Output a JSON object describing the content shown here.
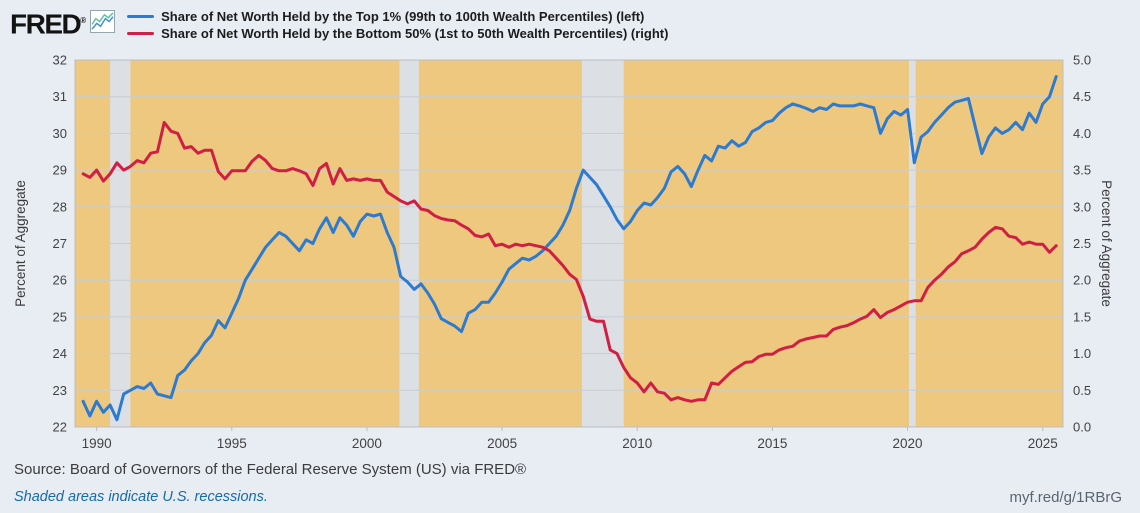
{
  "header": {
    "logo": "FRED",
    "registered": "®"
  },
  "footer": {
    "source": "Source: Board of Governors of the Federal Reserve System (US) via FRED®",
    "note": "Shaded areas indicate U.S. recessions.",
    "shortlink": "myf.red/g/1RBrG"
  },
  "chart_data": {
    "type": "line",
    "left_axis": {
      "label": "Percent of Aggregate",
      "min": 22,
      "max": 32,
      "ticks": [
        22,
        23,
        24,
        25,
        26,
        27,
        28,
        29,
        30,
        31,
        32
      ]
    },
    "right_axis": {
      "label": "Percent of Aggregate",
      "min": 0,
      "max": 5,
      "ticks": [
        0,
        0.5,
        1,
        1.5,
        2,
        2.5,
        3,
        3.5,
        4,
        4.5,
        5
      ]
    },
    "x_axis": {
      "min": 1989.2,
      "max": 2025.75,
      "ticks": [
        1990,
        1995,
        2000,
        2005,
        2010,
        2015,
        2020,
        2025
      ]
    },
    "recessions": [
      [
        1990.5,
        1991.25
      ],
      [
        2001.2,
        2001.92
      ],
      [
        2007.95,
        2009.5
      ],
      [
        2020.05,
        2020.3
      ]
    ],
    "colors": {
      "plot_bg": "#edc87e",
      "recession": "#dcdfe4",
      "grid": "#c8cdd3",
      "frame": "#b9bec5",
      "tick_text": "#424242"
    },
    "series": [
      {
        "name": "Share of Net Worth Held by the Top 1% (99th to 100th Wealth Percentiles) (left)",
        "axis": "left",
        "color": "#2c7bd1",
        "start": 1989.5,
        "step": 0.25,
        "values": [
          22.7,
          22.3,
          22.7,
          22.4,
          22.6,
          22.2,
          22.9,
          23.0,
          23.1,
          23.05,
          23.2,
          22.9,
          22.85,
          22.8,
          23.4,
          23.55,
          23.8,
          24.0,
          24.3,
          24.5,
          24.9,
          24.7,
          25.1,
          25.5,
          26.0,
          26.3,
          26.6,
          26.9,
          27.1,
          27.3,
          27.2,
          27.0,
          26.8,
          27.1,
          27.0,
          27.4,
          27.7,
          27.3,
          27.7,
          27.5,
          27.2,
          27.6,
          27.8,
          27.75,
          27.8,
          27.3,
          26.9,
          26.1,
          25.95,
          25.75,
          25.9,
          25.65,
          25.35,
          24.95,
          24.85,
          24.75,
          24.6,
          25.1,
          25.2,
          25.4,
          25.4,
          25.65,
          25.95,
          26.3,
          26.45,
          26.6,
          26.55,
          26.65,
          26.8,
          27.0,
          27.2,
          27.5,
          27.9,
          28.5,
          29.0,
          28.8,
          28.6,
          28.3,
          28.0,
          27.65,
          27.4,
          27.6,
          27.9,
          28.1,
          28.05,
          28.25,
          28.5,
          28.95,
          29.1,
          28.9,
          28.55,
          29.0,
          29.4,
          29.25,
          29.65,
          29.6,
          29.8,
          29.65,
          29.75,
          30.05,
          30.15,
          30.3,
          30.35,
          30.55,
          30.7,
          30.8,
          30.75,
          30.68,
          30.6,
          30.7,
          30.65,
          30.8,
          30.75,
          30.75,
          30.75,
          30.8,
          30.75,
          30.7,
          30.0,
          30.4,
          30.6,
          30.5,
          30.65,
          29.2,
          29.9,
          30.05,
          30.3,
          30.5,
          30.7,
          30.85,
          30.9,
          30.95,
          30.2,
          29.45,
          29.9,
          30.15,
          30.0,
          30.1,
          30.3,
          30.1,
          30.55,
          30.3,
          30.8,
          31.0,
          31.55
        ]
      },
      {
        "name": "Share of Net Worth Held by the Bottom 50% (1st to 50th Wealth Percentiles) (right)",
        "axis": "right",
        "color": "#d01f44",
        "start": 1989.5,
        "step": 0.25,
        "values": [
          3.45,
          3.4,
          3.5,
          3.35,
          3.45,
          3.6,
          3.5,
          3.55,
          3.63,
          3.6,
          3.73,
          3.75,
          4.15,
          4.03,
          4.0,
          3.8,
          3.82,
          3.73,
          3.77,
          3.77,
          3.48,
          3.38,
          3.49,
          3.49,
          3.49,
          3.62,
          3.7,
          3.63,
          3.52,
          3.49,
          3.49,
          3.52,
          3.49,
          3.45,
          3.29,
          3.52,
          3.59,
          3.31,
          3.52,
          3.36,
          3.38,
          3.36,
          3.38,
          3.36,
          3.36,
          3.2,
          3.14,
          3.08,
          3.04,
          3.08,
          2.97,
          2.95,
          2.88,
          2.84,
          2.82,
          2.81,
          2.75,
          2.7,
          2.61,
          2.59,
          2.63,
          2.47,
          2.49,
          2.45,
          2.49,
          2.47,
          2.49,
          2.47,
          2.45,
          2.4,
          2.3,
          2.2,
          2.08,
          2.01,
          1.78,
          1.47,
          1.44,
          1.44,
          1.05,
          1.0,
          0.81,
          0.67,
          0.6,
          0.48,
          0.6,
          0.48,
          0.46,
          0.37,
          0.4,
          0.37,
          0.35,
          0.37,
          0.37,
          0.6,
          0.58,
          0.67,
          0.76,
          0.82,
          0.88,
          0.89,
          0.96,
          0.99,
          0.99,
          1.05,
          1.08,
          1.1,
          1.17,
          1.2,
          1.22,
          1.24,
          1.24,
          1.33,
          1.36,
          1.38,
          1.42,
          1.47,
          1.51,
          1.6,
          1.49,
          1.56,
          1.6,
          1.65,
          1.7,
          1.72,
          1.72,
          1.9,
          2.0,
          2.08,
          2.18,
          2.25,
          2.36,
          2.4,
          2.45,
          2.56,
          2.65,
          2.72,
          2.7,
          2.6,
          2.58,
          2.49,
          2.52,
          2.49,
          2.49,
          2.38,
          2.47
        ]
      }
    ]
  }
}
